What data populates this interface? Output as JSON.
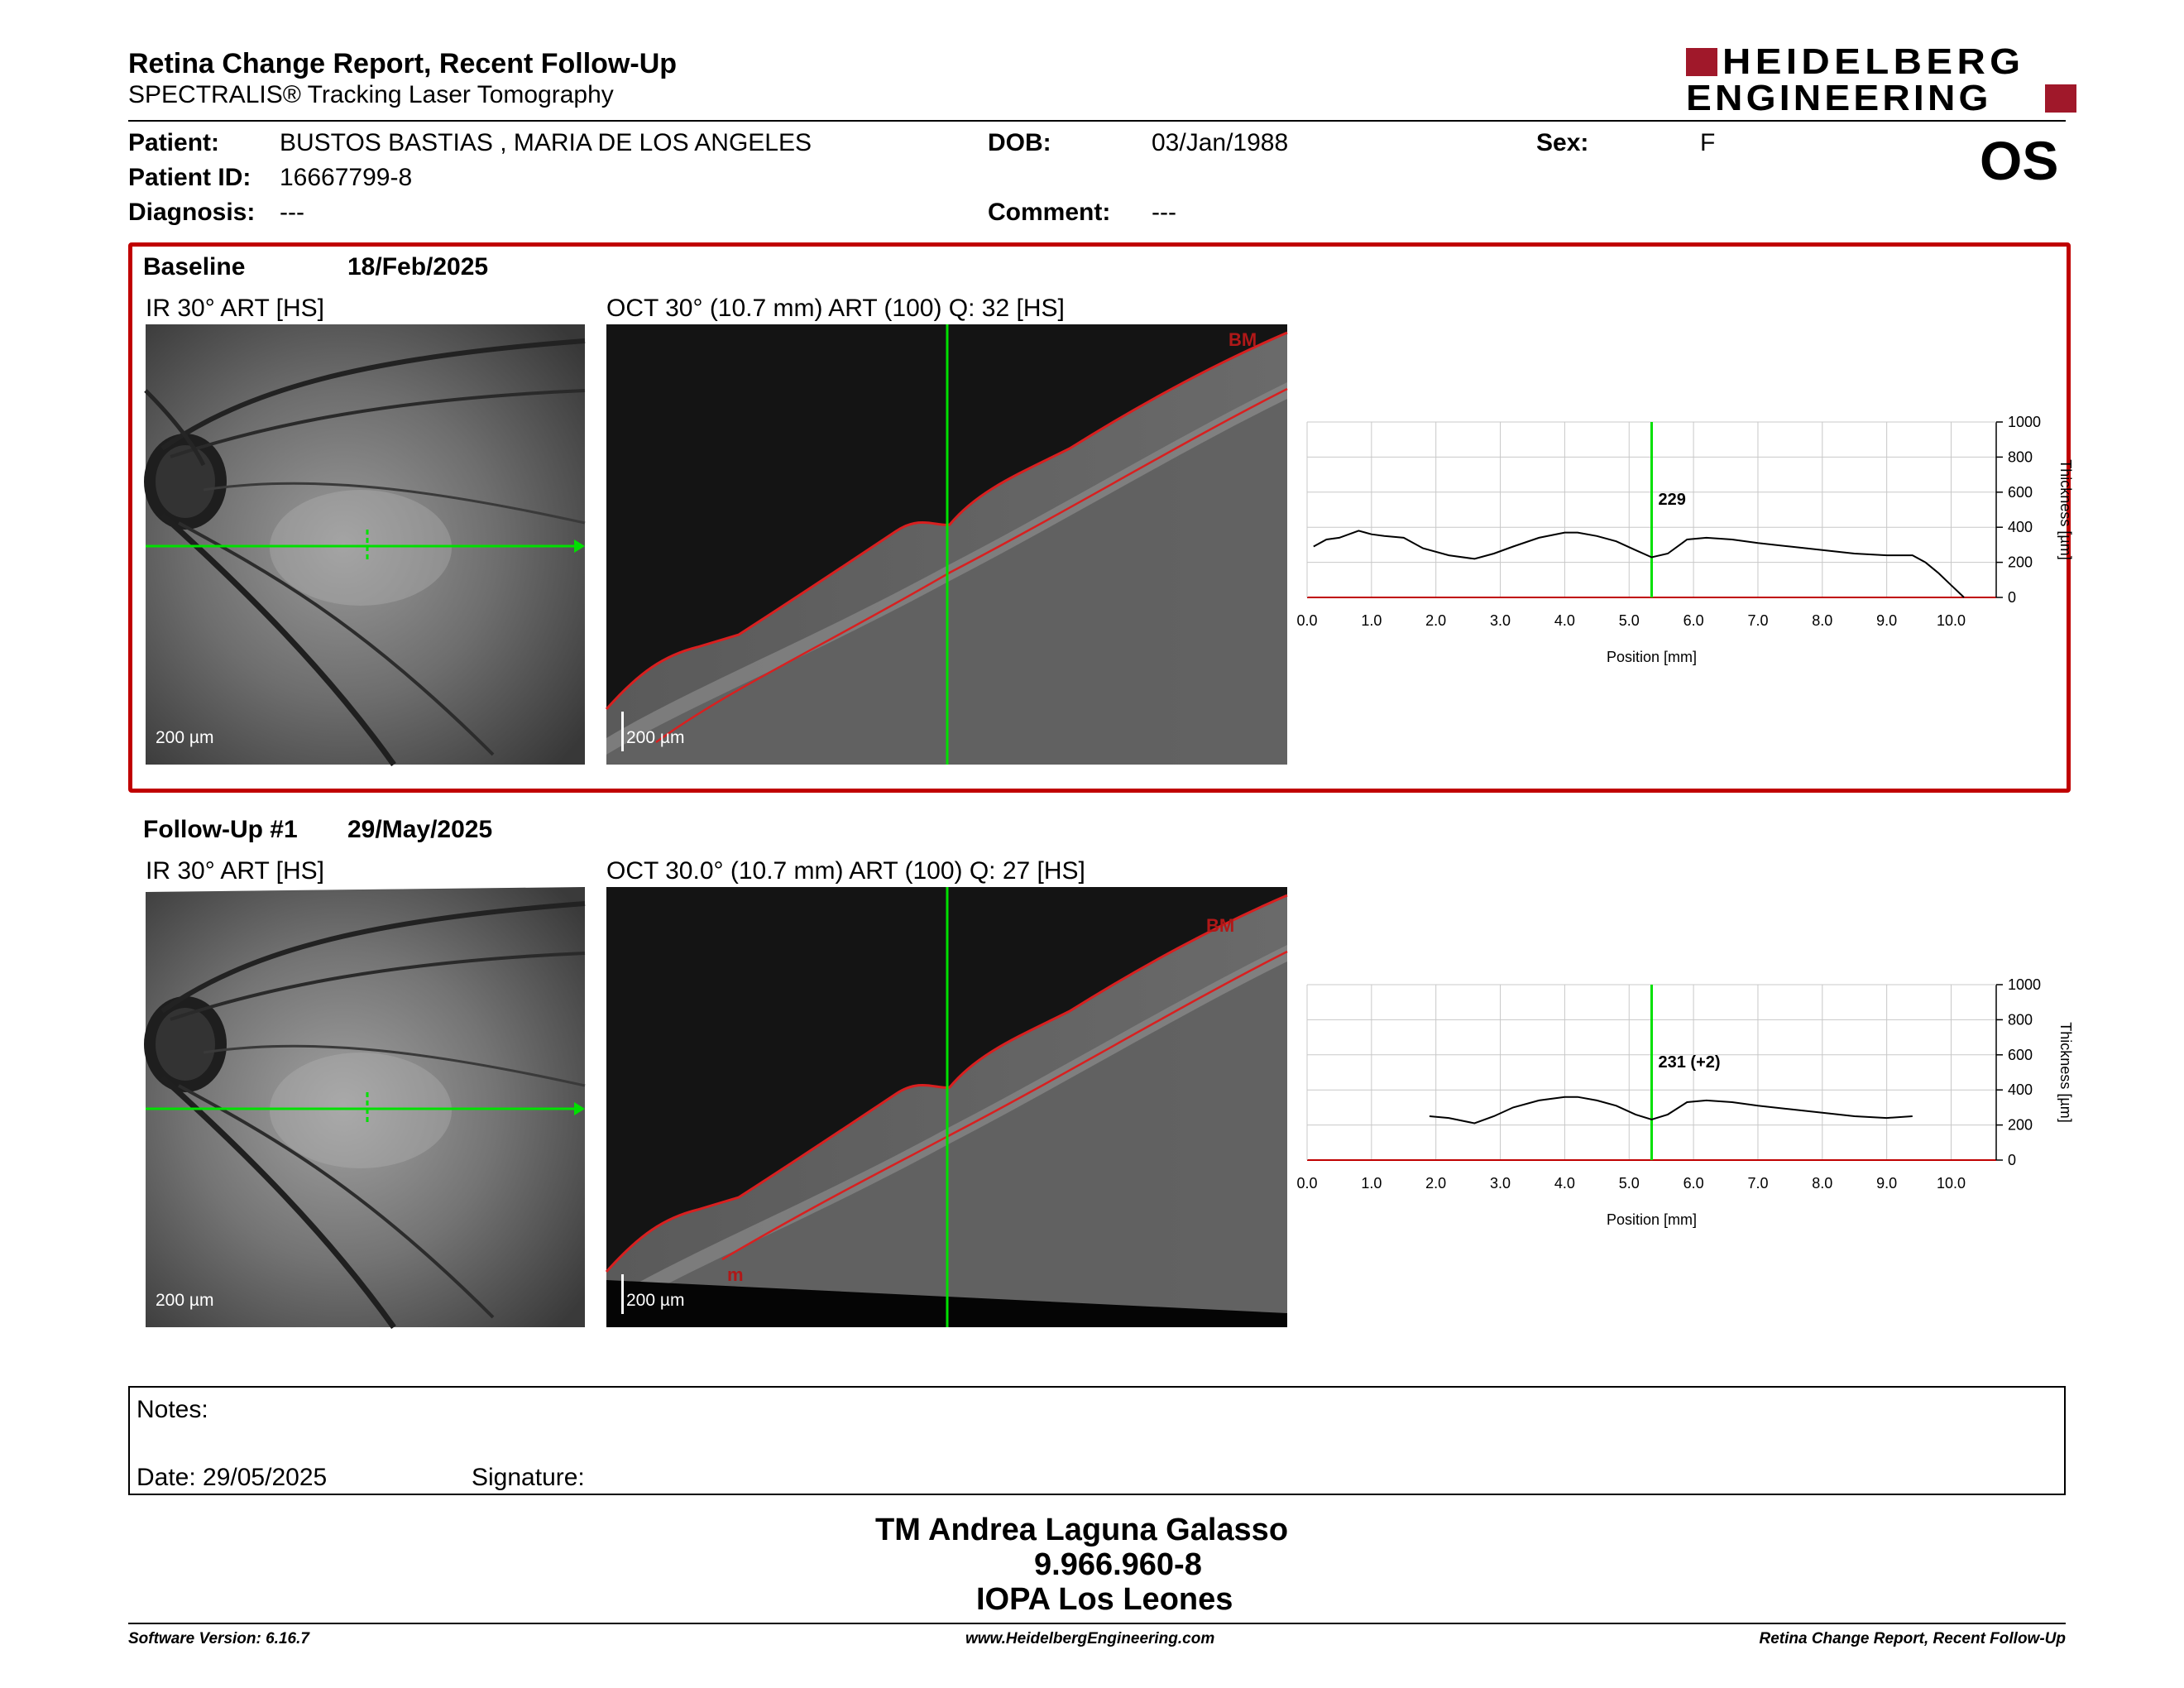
{
  "header": {
    "title": "Retina Change Report, Recent Follow-Up",
    "subtitle": "SPECTRALIS® Tracking Laser Tomography",
    "logo_line1": "HEIDELBERG",
    "logo_line2": "ENGINEERING",
    "eye": "OS"
  },
  "patient": {
    "patient_label": "Patient:",
    "patient_value": "BUSTOS BASTIAS , MARIA DE LOS ANGELES",
    "dob_label": "DOB:",
    "dob_value": "03/Jan/1988",
    "sex_label": "Sex:",
    "sex_value": "F",
    "id_label": "Patient ID:",
    "id_value": "16667799-8",
    "diagnosis_label": "Diagnosis:",
    "diagnosis_value": "---",
    "comment_label": "Comment:",
    "comment_value": "---"
  },
  "baseline": {
    "label": "Baseline",
    "date": "18/Feb/2025",
    "ir_title": "IR 30° ART [HS]",
    "oct_title": "OCT 30° (10.7 mm) ART (100) Q: 32 [HS]",
    "ir_scale": "200 µm",
    "oct_scale": "200 µm",
    "bm_label": "BM",
    "thickness_label": "229"
  },
  "followup": {
    "label": "Follow-Up #1",
    "date": "29/May/2025",
    "ir_title": "IR 30° ART [HS]",
    "oct_title": "OCT 30.0° (10.7 mm) ART (100) Q: 27 [HS]",
    "ir_scale": "200 µm",
    "oct_scale": "200 µm",
    "bm_label": "BM",
    "m_label": "m",
    "thickness_label": "231 (+2)"
  },
  "chart_data": [
    {
      "type": "line",
      "series": [
        {
          "x": [
            0.1,
            0.3,
            0.5,
            0.8,
            1.0,
            1.2,
            1.5,
            1.8,
            2.2,
            2.6,
            2.9,
            3.2,
            3.6,
            4.0,
            4.2,
            4.5,
            4.8,
            5.1,
            5.35,
            5.6,
            5.9,
            6.2,
            6.6,
            7.0,
            7.5,
            8.0,
            8.5,
            9.0,
            9.4,
            9.6,
            9.8,
            10.0,
            10.2
          ],
          "y": [
            290,
            330,
            340,
            380,
            360,
            350,
            340,
            280,
            240,
            220,
            250,
            290,
            340,
            370,
            370,
            350,
            320,
            270,
            229,
            250,
            330,
            340,
            330,
            310,
            290,
            270,
            250,
            240,
            240,
            200,
            140,
            70,
            0
          ]
        }
      ],
      "xlim": [
        0,
        10.7
      ],
      "ylim": [
        0,
        1000
      ],
      "xticks": [
        "0.0",
        "1.0",
        "2.0",
        "3.0",
        "4.0",
        "5.0",
        "6.0",
        "7.0",
        "8.0",
        "9.0",
        "10.0"
      ],
      "yticks": [
        "0",
        "200",
        "400",
        "600",
        "800",
        "1000"
      ],
      "xlabel": "Position [mm]",
      "ylabel": "Thickness [µm]",
      "marker_x": 5.35
    },
    {
      "type": "line",
      "series": [
        {
          "x": [
            1.9,
            2.2,
            2.6,
            2.9,
            3.2,
            3.6,
            4.0,
            4.2,
            4.5,
            4.8,
            5.1,
            5.35,
            5.6,
            5.9,
            6.2,
            6.6,
            7.0,
            7.5,
            8.0,
            8.5,
            9.0,
            9.4
          ],
          "y": [
            250,
            240,
            210,
            250,
            300,
            340,
            360,
            360,
            340,
            310,
            260,
            231,
            260,
            330,
            340,
            330,
            310,
            290,
            270,
            250,
            240,
            250
          ]
        }
      ],
      "xlim": [
        0,
        10.7
      ],
      "ylim": [
        0,
        1000
      ],
      "xticks": [
        "0.0",
        "1.0",
        "2.0",
        "3.0",
        "4.0",
        "5.0",
        "6.0",
        "7.0",
        "8.0",
        "9.0",
        "10.0"
      ],
      "yticks": [
        "0",
        "200",
        "400",
        "600",
        "800",
        "1000"
      ],
      "xlabel": "Position [mm]",
      "ylabel": "Thickness [µm]",
      "marker_x": 5.35
    }
  ],
  "notes": {
    "notes_label": "Notes:",
    "date_label": "Date: 29/05/2025",
    "signature_label": "Signature:"
  },
  "signer": {
    "name": "TM Andrea Laguna Galasso",
    "id": "9.966.960-8",
    "institution": "IOPA Los Leones"
  },
  "footer": {
    "software": "Software Version: 6.16.7",
    "website": "www.HeidelbergEngineering.com",
    "report": "Retina Change Report, Recent Follow-Up"
  },
  "colors": {
    "accent": "#c00000",
    "scan_line": "#00e000"
  }
}
